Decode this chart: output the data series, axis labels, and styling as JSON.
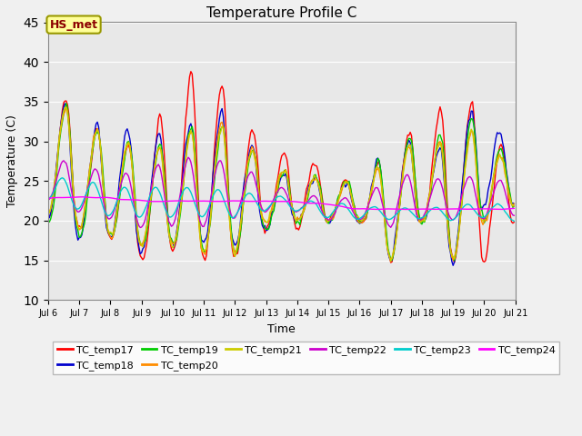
{
  "title": "Temperature Profile C",
  "xlabel": "Time",
  "ylabel": "Temperature (C)",
  "ylim": [
    10,
    45
  ],
  "xlim_days": [
    6,
    21
  ],
  "annotation": "HS_met",
  "annotation_color": "#8B0000",
  "annotation_bg": "#FFFF99",
  "series_colors": {
    "TC_temp17": "#FF0000",
    "TC_temp18": "#0000CD",
    "TC_temp19": "#00CC00",
    "TC_temp20": "#FF8C00",
    "TC_temp21": "#CCCC00",
    "TC_temp22": "#CC00CC",
    "TC_temp23": "#00CCCC",
    "TC_temp24": "#FF00FF"
  },
  "yticks": [
    10,
    15,
    20,
    25,
    30,
    35,
    40,
    45
  ],
  "xtick_labels": [
    "Jul 6",
    "Jul 7",
    "Jul 8",
    "Jul 9",
    "Jul 10",
    "Jul 11",
    "Jul 12",
    "Jul 13",
    "Jul 14",
    "Jul 15",
    "Jul 16",
    "Jul 17",
    "Jul 18",
    "Jul 19",
    "Jul 20",
    "Jul 21"
  ],
  "linewidth": 1.0
}
